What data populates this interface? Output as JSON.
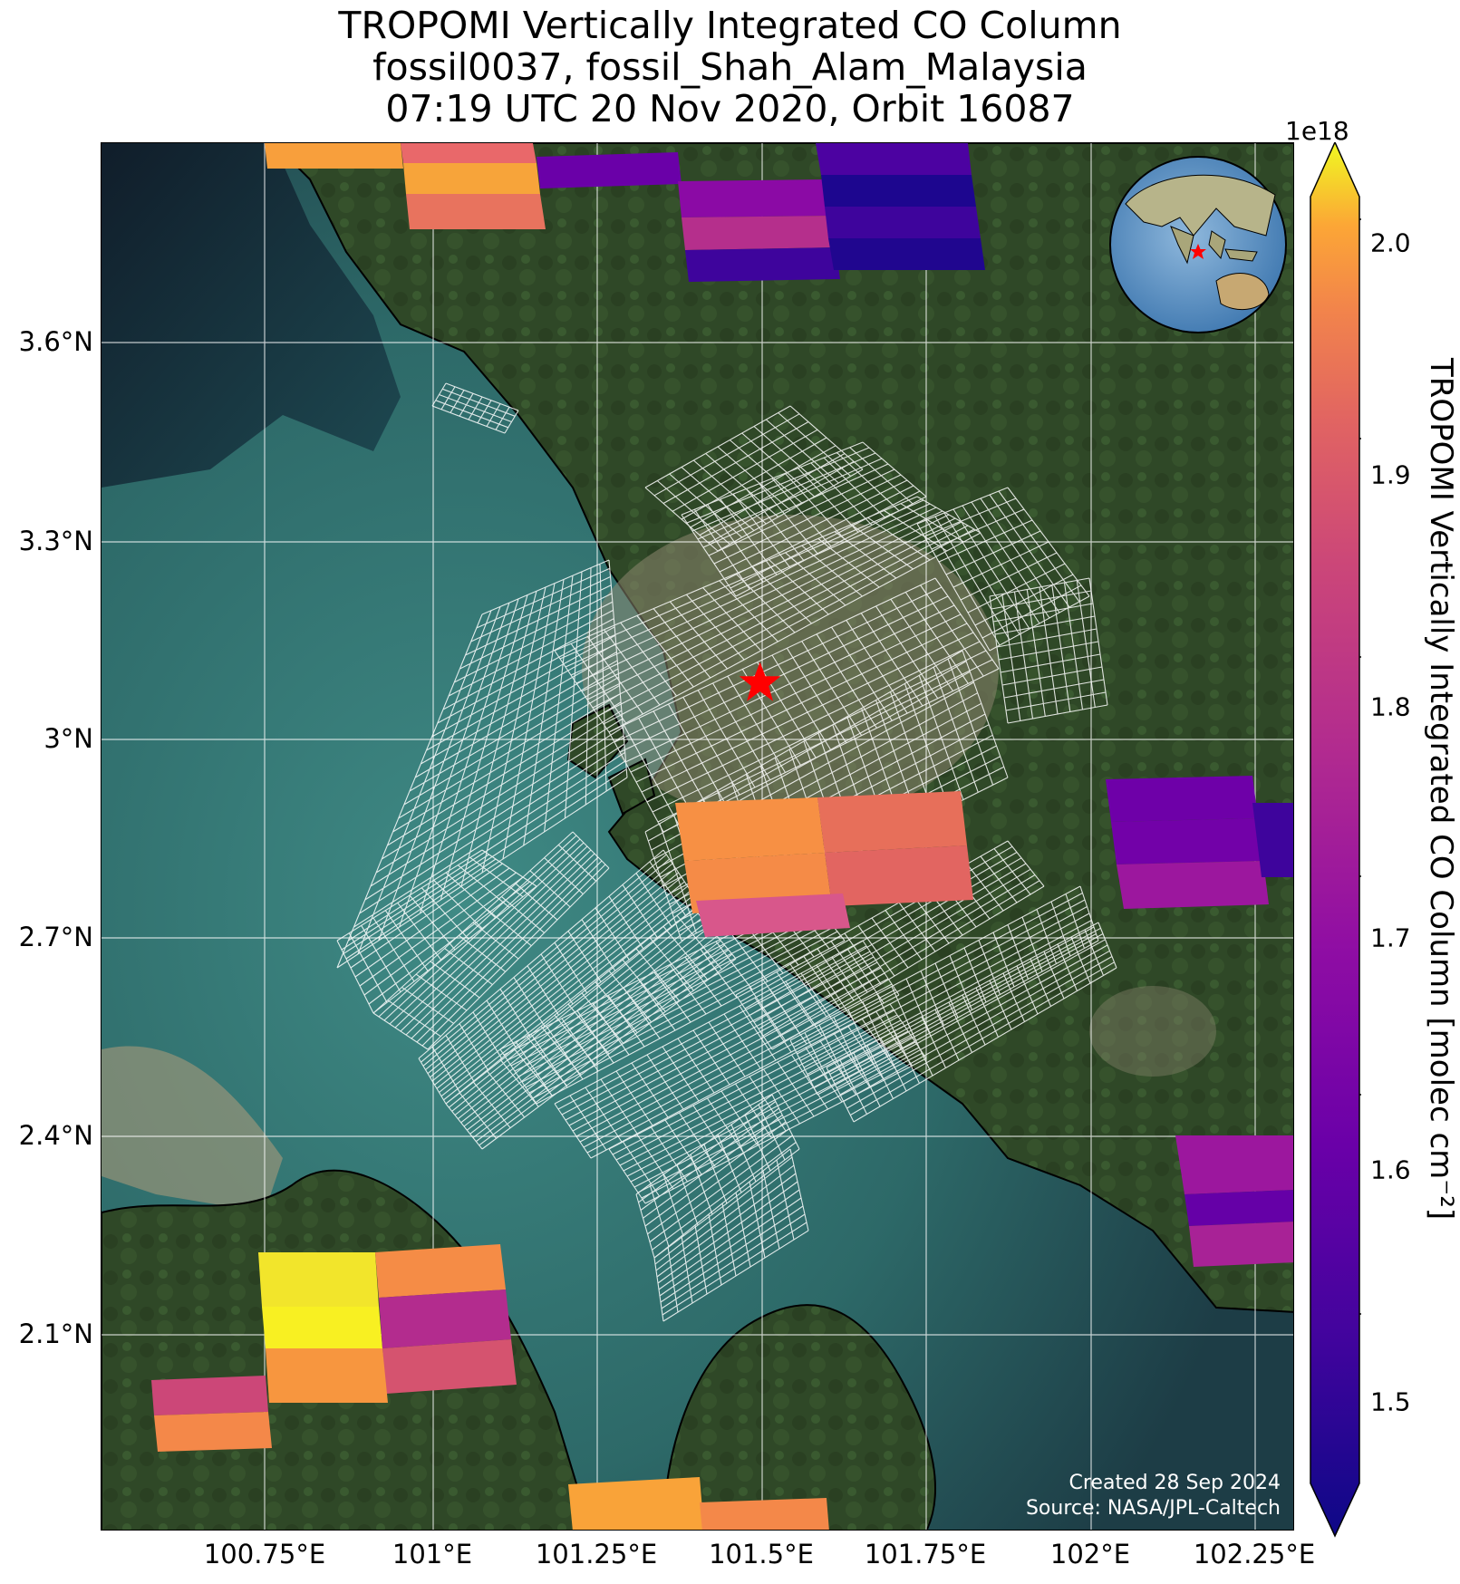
{
  "title": {
    "line1": "TROPOMI Vertically Integrated CO Column",
    "line2": "fossil0037, fossil_Shah_Alam_Malaysia",
    "line3": "07:19 UTC 20 Nov 2020, Orbit 16087"
  },
  "map": {
    "lon_range": [
      100.53,
      102.27
    ],
    "lat_range": [
      1.82,
      3.9
    ],
    "lat_ticks": [
      "3.6°N",
      "3.3°N",
      "3°N",
      "2.7°N",
      "2.4°N",
      "2.1°N"
    ],
    "lon_ticks": [
      "100.75°E",
      "101°E",
      "101.25°E",
      "101.5°E",
      "101.75°E",
      "102°E",
      "102.25°E"
    ],
    "target_marker": {
      "lon": 101.49,
      "lat": 3.09,
      "label": ""
    },
    "footer_created": "Created 28 Sep 2024",
    "footer_source": "Source: NASA/JPL-Caltech"
  },
  "colorbar": {
    "label": "TROPOMI Vertically Integrated CO Column [molec cm⁻²]",
    "exponent": "1e18",
    "ticks": [
      "2.0",
      "1.9",
      "1.8",
      "1.7",
      "1.6",
      "1.5"
    ],
    "range": [
      1.45,
      2.02
    ],
    "colormap": "plasma"
  },
  "colors": {
    "water": "#2c6465",
    "land": "#2f4a28",
    "urban": "#8d8670",
    "coast": "#000000",
    "grid": "#ffffff"
  }
}
